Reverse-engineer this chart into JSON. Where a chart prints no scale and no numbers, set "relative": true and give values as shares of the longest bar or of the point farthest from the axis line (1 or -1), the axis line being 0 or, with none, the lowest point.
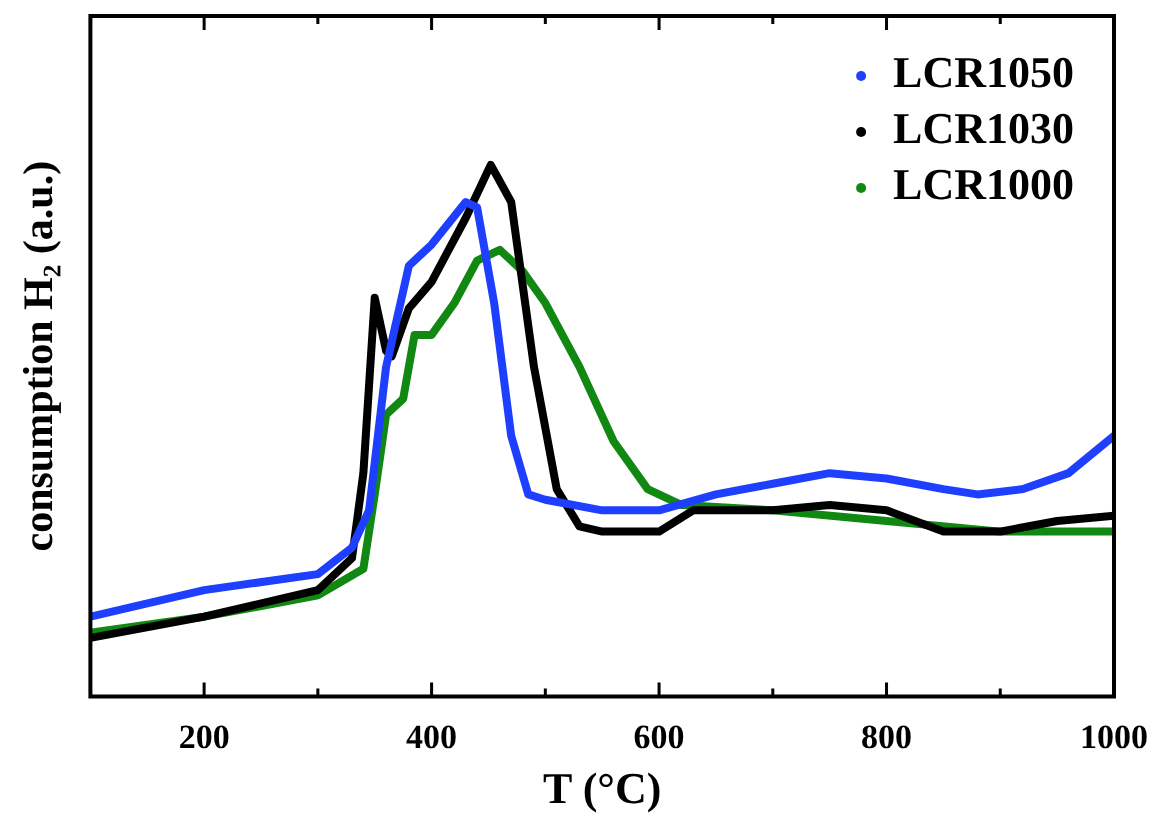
{
  "chart_data": {
    "type": "line",
    "xlabel": "T (°C)",
    "ylabel": "consumption H₂ (a.u.)",
    "relative": true,
    "legend": "top right",
    "grid": false,
    "xlim": [
      100,
      1000
    ],
    "xticks": [
      200,
      {
        "value": 300,
        "label": null
      },
      400,
      {
        "value": 500,
        "label": null
      },
      600,
      {
        "value": 700,
        "label": null
      },
      800,
      {
        "value": 900,
        "label": null
      },
      1000
    ],
    "series": [
      {
        "name": "LCR1050",
        "color": "#1f3fff",
        "x": [
          100,
          200,
          300,
          330,
          345,
          360,
          380,
          400,
          430,
          440,
          455,
          470,
          485,
          500,
          550,
          600,
          650,
          700,
          750,
          800,
          850,
          880,
          920,
          960,
          1000
        ],
        "values": [
          0.15,
          0.2,
          0.23,
          0.28,
          0.35,
          0.62,
          0.81,
          0.85,
          0.93,
          0.92,
          0.74,
          0.49,
          0.38,
          0.37,
          0.35,
          0.35,
          0.38,
          0.4,
          0.42,
          0.41,
          0.39,
          0.38,
          0.39,
          0.42,
          0.49
        ]
      },
      {
        "name": "LCR1030",
        "color": "#000000",
        "x": [
          100,
          200,
          300,
          330,
          340,
          350,
          360,
          365,
          380,
          400,
          430,
          452,
          470,
          490,
          510,
          530,
          550,
          570,
          600,
          630,
          650,
          700,
          750,
          800,
          850,
          900,
          950,
          1000
        ],
        "values": [
          0.11,
          0.15,
          0.2,
          0.26,
          0.42,
          0.75,
          0.65,
          0.64,
          0.73,
          0.78,
          0.9,
          1,
          0.93,
          0.62,
          0.39,
          0.32,
          0.31,
          0.31,
          0.31,
          0.35,
          0.35,
          0.35,
          0.36,
          0.35,
          0.31,
          0.31,
          0.33,
          0.34
        ]
      },
      {
        "name": "LCR1000",
        "color": "#118811",
        "x": [
          100,
          200,
          300,
          340,
          350,
          360,
          375,
          385,
          400,
          420,
          440,
          460,
          480,
          500,
          530,
          560,
          590,
          620,
          700,
          800,
          900,
          1000
        ],
        "values": [
          0.12,
          0.15,
          0.19,
          0.24,
          0.38,
          0.53,
          0.56,
          0.68,
          0.68,
          0.74,
          0.82,
          0.84,
          0.8,
          0.74,
          0.62,
          0.48,
          0.39,
          0.36,
          0.35,
          0.33,
          0.31,
          0.31
        ]
      }
    ]
  }
}
